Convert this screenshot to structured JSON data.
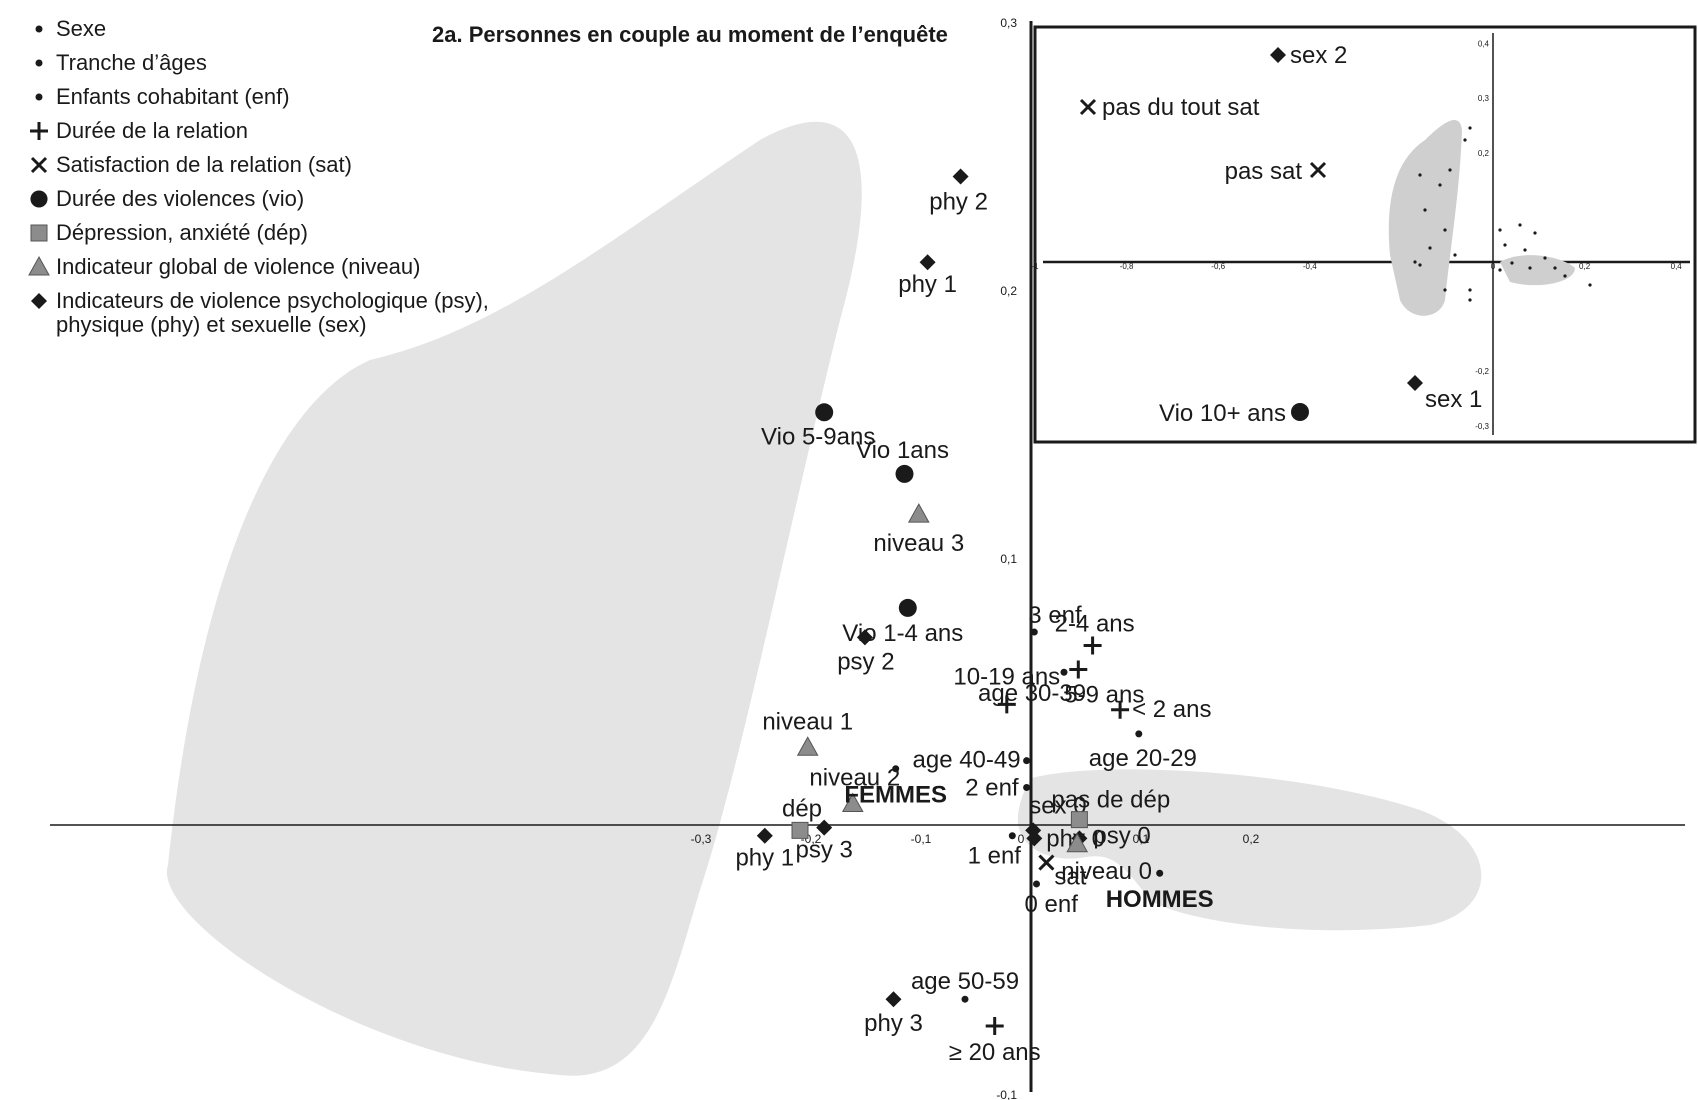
{
  "legend": [
    {
      "marker": "dot",
      "label": "Sexe"
    },
    {
      "marker": "dot",
      "label": "Tranche d’âges"
    },
    {
      "marker": "dot",
      "label": "Enfants cohabitant (enf)"
    },
    {
      "marker": "plus",
      "label": "Durée de la relation"
    },
    {
      "marker": "cross",
      "label": "Satisfaction de la relation (sat)"
    },
    {
      "marker": "circle",
      "label": "Durée des violences (vio)"
    },
    {
      "marker": "square",
      "label": "Dépression, anxiété (dép)"
    },
    {
      "marker": "triangle",
      "label": "Indicateur global de violence (niveau)"
    },
    {
      "marker": "diamond",
      "label": "Indicateurs de violence psychologique (psy),\nphysique (phy) et sexuelle (sex)"
    }
  ],
  "chart_data": {
    "type": "scatter",
    "title": "2a. Personnes en couple au moment de l’enquête",
    "xlim": [
      -0.3,
      0.2
    ],
    "ylim": [
      -0.1,
      0.3
    ],
    "x_ticks": [
      -0.3,
      -0.2,
      -0.1,
      0,
      0.1,
      0.2
    ],
    "x_tick_labels": [
      "-0,3",
      "-0,2",
      "-0,1",
      "0",
      "0,1",
      "0,2"
    ],
    "y_ticks": [
      0.3,
      0.2,
      0.1,
      -0.1
    ],
    "y_tick_labels": [
      "0,3",
      "0,2",
      "0,1",
      "-0,1"
    ],
    "grid": false,
    "colors": {
      "ink": "#1a1a1a",
      "grey_marker": "#8c8c8c",
      "region": "#e4e4e4"
    },
    "points": [
      {
        "label": "phy 2",
        "marker": "diamond",
        "x": -0.064,
        "y": 0.242
      },
      {
        "label": "phy 1",
        "marker": "diamond",
        "x": -0.094,
        "y": 0.21
      },
      {
        "label": "Vio 5-9ans",
        "marker": "circle",
        "x": -0.188,
        "y": 0.154
      },
      {
        "label": "Vio 1ans",
        "marker": "circle",
        "x": -0.115,
        "y": 0.131
      },
      {
        "label": "niveau 3",
        "marker": "triangle",
        "x": -0.102,
        "y": 0.116
      },
      {
        "label": "Vio 1-4 ans",
        "marker": "circle",
        "x": -0.112,
        "y": 0.081
      },
      {
        "label": "psy 2",
        "marker": "diamond",
        "x": -0.151,
        "y": 0.07
      },
      {
        "label": "niveau 1",
        "marker": "triangle",
        "x": -0.203,
        "y": 0.029
      },
      {
        "label": "niveau 2",
        "marker": "triangle",
        "x": -0.162,
        "y": 0.008
      },
      {
        "label": "FEMMES",
        "marker": "dot",
        "x": -0.123,
        "y": 0.021
      },
      {
        "label": "dép",
        "marker": "square",
        "x": -0.21,
        "y": -0.002
      },
      {
        "label": "psy 3",
        "marker": "diamond",
        "x": -0.188,
        "y": -0.001
      },
      {
        "label": "phy 1",
        "marker": "diamond",
        "x": -0.242,
        "y": -0.004
      },
      {
        "label": "phy 3",
        "marker": "diamond",
        "x": -0.125,
        "y": -0.065
      },
      {
        "label": "age 50-59",
        "marker": "dot",
        "x": -0.06,
        "y": -0.065
      },
      {
        "label": "≥ 20 ans",
        "marker": "plus",
        "x": -0.033,
        "y": -0.075
      },
      {
        "label": "10-19 ans",
        "marker": "plus",
        "x": -0.022,
        "y": 0.045
      },
      {
        "label": "age 40-49",
        "marker": "dot",
        "x": -0.004,
        "y": 0.024
      },
      {
        "label": "2 enf",
        "marker": "dot",
        "x": -0.004,
        "y": 0.014
      },
      {
        "label": "1 enf",
        "marker": "dot",
        "x": -0.017,
        "y": -0.004
      },
      {
        "label": "3 enf",
        "marker": "dot",
        "x": 0.003,
        "y": 0.072
      },
      {
        "label": "age 30-39",
        "marker": "dot",
        "x": 0.03,
        "y": 0.057
      },
      {
        "label": "5-9 ans",
        "marker": "plus",
        "x": 0.043,
        "y": 0.058
      },
      {
        "label": "2-4 ans",
        "marker": "plus",
        "x": 0.056,
        "y": 0.067
      },
      {
        "label": "< 2 ans",
        "marker": "plus",
        "x": 0.081,
        "y": 0.043
      },
      {
        "label": "age 20-29",
        "marker": "dot",
        "x": 0.098,
        "y": 0.034
      },
      {
        "label": "sex 0",
        "marker": "diamond",
        "x": 0.002,
        "y": -0.002
      },
      {
        "label": "phy 0",
        "marker": "diamond",
        "x": 0.003,
        "y": -0.005
      },
      {
        "label": "sat",
        "marker": "cross",
        "x": 0.014,
        "y": -0.014
      },
      {
        "label": "0 enf",
        "marker": "dot",
        "x": 0.005,
        "y": -0.022
      },
      {
        "label": "pas de dép",
        "marker": "square",
        "x": 0.044,
        "y": 0.002
      },
      {
        "label": "psy 0",
        "marker": "diamond",
        "x": 0.044,
        "y": -0.005
      },
      {
        "label": "niveau 0",
        "marker": "triangle",
        "x": 0.042,
        "y": -0.007
      },
      {
        "label": "HOMMES",
        "marker": "dot",
        "x": 0.117,
        "y": -0.018
      }
    ],
    "inset": {
      "xlim": [
        -1,
        0.4
      ],
      "ylim": [
        -0.3,
        0.4
      ],
      "x_tick_labels": [
        "-1",
        "-0,8",
        "-0,6",
        "-0,4",
        "-0,2",
        "0",
        "0,2",
        "0,4"
      ],
      "y_tick_labels": [
        "0,4",
        "0,3",
        "0,2",
        "-0,2",
        "-0,3"
      ],
      "points": [
        {
          "label": "sex 2",
          "marker": "diamond"
        },
        {
          "label": "pas du tout sat",
          "marker": "cross"
        },
        {
          "label": "pas sat",
          "marker": "cross"
        },
        {
          "label": "sex 1",
          "marker": "diamond"
        },
        {
          "label": "Vio 10+ ans",
          "marker": "circle"
        }
      ]
    }
  }
}
